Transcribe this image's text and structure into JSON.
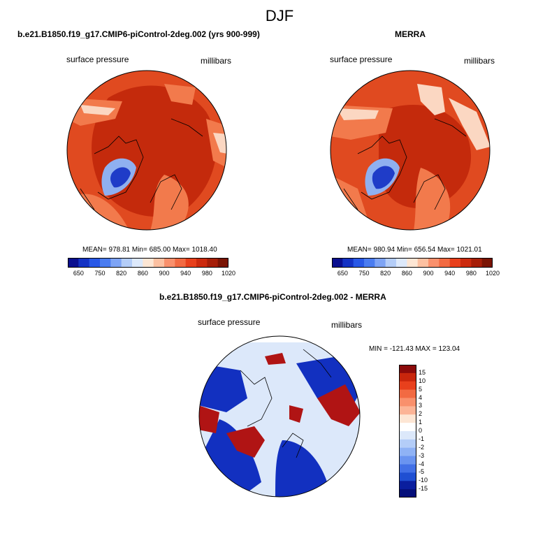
{
  "title": "DJF",
  "panels": [
    {
      "title": "b.e21.B1850.f19_g17.CMIP6-piControl-2deg.002 (yrs 900-999)",
      "left_label": "surface pressure",
      "right_label": "millibars",
      "stats": "MEAN= 978.81  Min= 685.00  Max= 1018.40"
    },
    {
      "title": "MERRA",
      "left_label": "surface pressure",
      "right_label": "millibars",
      "stats": "MEAN= 980.94  Min= 656.54  Max= 1021.01"
    },
    {
      "title": "b.e21.B1850.f19_g17.CMIP6-piControl-2deg.002 - MERRA",
      "left_label": "surface pressure",
      "right_label": "millibars",
      "stats": "MIN = -121.43  MAX = 123.04"
    }
  ],
  "colorbar_top": {
    "labels": [
      "650",
      "750",
      "820",
      "860",
      "900",
      "940",
      "980",
      "1020"
    ],
    "colors": [
      "#0a0f8f",
      "#1432c4",
      "#2858e6",
      "#4a7cf0",
      "#7ea4f5",
      "#b4cdf8",
      "#dde9fb",
      "#fde6d4",
      "#fcc0a1",
      "#f9906c",
      "#f26a42",
      "#e8401c",
      "#cc2a0e",
      "#a61e08",
      "#7a1404"
    ]
  },
  "colorbar_diff": {
    "labels": [
      "15",
      "10",
      "5",
      "4",
      "3",
      "2",
      "1",
      "0",
      "-1",
      "-2",
      "-3",
      "-4",
      "-5",
      "-10",
      "-15"
    ],
    "colors": [
      "#8b0a0a",
      "#c8260c",
      "#e8401c",
      "#f26a42",
      "#f9906c",
      "#fcb496",
      "#fde6d4",
      "#ffffff",
      "#dce8fa",
      "#b4cdf8",
      "#8fb2f5",
      "#6a94f0",
      "#4270e6",
      "#1f4fd2",
      "#0a1e9e",
      "#050f7a"
    ]
  },
  "map_colors": {
    "high": "#c42a0c",
    "mid": "#e04a20",
    "light": "#f27a4c",
    "pale": "#fbd7c2",
    "blue_dark": "#1f3cc8",
    "blue_light": "#8fb0f0",
    "diff_red": "#b01414",
    "diff_blue": "#1230c0",
    "diff_pale": "#dce8fa"
  }
}
